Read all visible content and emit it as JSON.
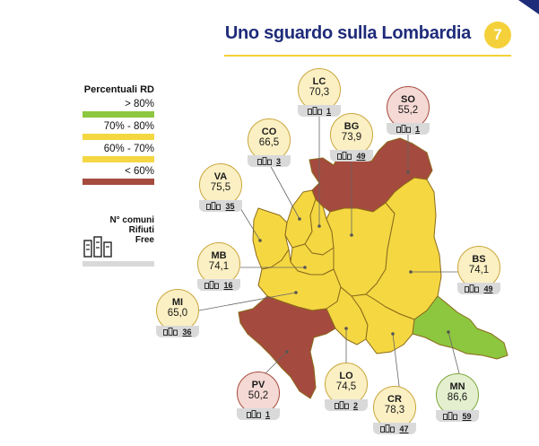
{
  "header": {
    "title": "Uno sguardo sulla Lombardia",
    "page_number": "7"
  },
  "legend": {
    "title": "Percentuali RD",
    "items": [
      {
        "label": "> 80%",
        "color": "#8dc63f"
      },
      {
        "label": "70% - 80%",
        "color": "#f5d742"
      },
      {
        "label": "60% - 70%",
        "color": "#f5d742"
      },
      {
        "label": "< 60%",
        "color": "#a54a3e"
      }
    ],
    "rifiuti_free_label": "N° comuni\nRifiuti\nFree"
  },
  "provinces": [
    {
      "code": "LC",
      "value": "70,3",
      "comuni": "1",
      "icon": "recycle-bins-icon"
    },
    {
      "code": "SO",
      "value": "55,2",
      "comuni": "1",
      "icon": "recycle-bins-icon"
    },
    {
      "code": "CO",
      "value": "66,5",
      "comuni": "3",
      "icon": "recycle-bins-icon"
    },
    {
      "code": "BG",
      "value": "73,9",
      "comuni": "49",
      "icon": "recycle-bins-icon"
    },
    {
      "code": "VA",
      "value": "75,5",
      "comuni": "35",
      "icon": "recycle-bins-icon"
    },
    {
      "code": "MB",
      "value": "74,1",
      "comuni": "16",
      "icon": "recycle-bins-icon"
    },
    {
      "code": "BS",
      "value": "74,1",
      "comuni": "49",
      "icon": "recycle-bins-icon"
    },
    {
      "code": "MI",
      "value": "65,0",
      "comuni": "36",
      "icon": "recycle-bins-icon"
    },
    {
      "code": "PV",
      "value": "50,2",
      "comuni": "1",
      "icon": "recycle-bins-icon"
    },
    {
      "code": "LO",
      "value": "74,5",
      "comuni": "2",
      "icon": "recycle-bins-icon"
    },
    {
      "code": "CR",
      "value": "78,3",
      "comuni": "47",
      "icon": "recycle-bins-icon"
    },
    {
      "code": "MN",
      "value": "86,6",
      "comuni": "59",
      "icon": "recycle-bins-icon"
    }
  ],
  "colors": {
    "title": "#1f2c7a",
    "accent": "#f4d13a",
    "green": "#8dc63f",
    "yellow": "#f5d742",
    "red": "#a54a3e",
    "bubble_yellow": "#fbf0c4",
    "bubble_red": "#f4d9d4",
    "bubble_green": "#e4efcf"
  }
}
